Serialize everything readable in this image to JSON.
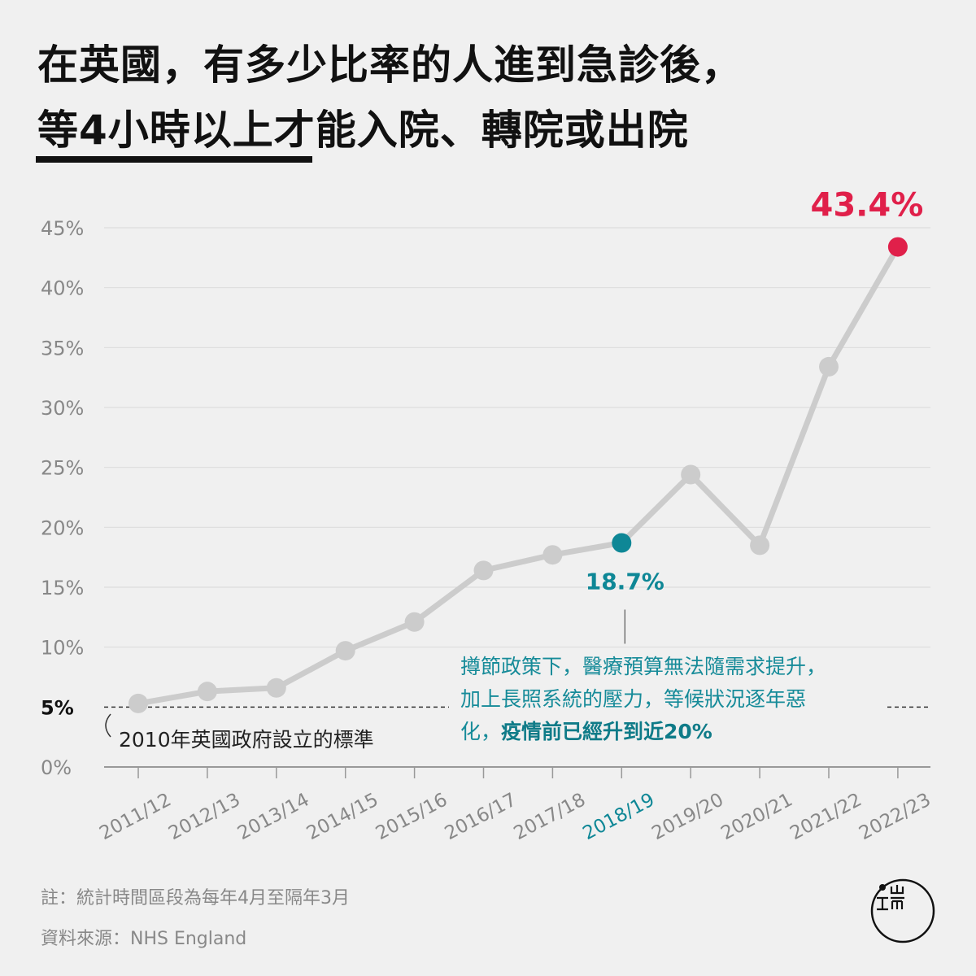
{
  "title": {
    "line1": "在英國，有多少比率的人進到急診後，",
    "line2_underlined": "等4小時以上",
    "line2_rest": "才能入院、轉院或出院"
  },
  "chart_data": {
    "type": "line",
    "title": "在英國，有多少比率的人進到急診後，等4小時以上才能入院、轉院或出院",
    "xlabel": "",
    "ylabel": "",
    "ylim": [
      0,
      45
    ],
    "yticks": [
      0,
      5,
      10,
      15,
      20,
      25,
      30,
      35,
      40,
      45
    ],
    "ytick_labels": [
      "0%",
      "5%",
      "10%",
      "15%",
      "20%",
      "25%",
      "30%",
      "35%",
      "40%",
      "45%"
    ],
    "grid": true,
    "categories": [
      "2011/12",
      "2012/13",
      "2013/14",
      "2014/15",
      "2015/16",
      "2016/17",
      "2017/18",
      "2018/19",
      "2019/20",
      "2020/21",
      "2021/22",
      "2022/23"
    ],
    "series": [
      {
        "name": "等4小時以上比率",
        "values": [
          5.3,
          6.3,
          6.6,
          9.7,
          12.1,
          16.4,
          17.7,
          18.7,
          24.4,
          18.5,
          33.4,
          43.4
        ]
      }
    ],
    "highlights": [
      {
        "category": "2018/19",
        "label": "18.7%",
        "color": "#0e8796"
      },
      {
        "category": "2022/23",
        "label": "43.4%",
        "color": "#e0204a"
      }
    ],
    "reference_line": {
      "value": 5,
      "label": "2010年英國政府設立的標準"
    },
    "annotation": {
      "line1": "撙節政策下，醫療預算無法隨需求提升，",
      "line2": "加上長照系統的壓力，等候狀況逐年惡",
      "line3_plain": "化，",
      "line3_bold": "疫情前已經升到近20%"
    }
  },
  "colors": {
    "line": "#cccccc",
    "teal": "#0e8796",
    "red": "#e0204a",
    "grid": "#dddddd"
  },
  "footer": {
    "note": "註：統計時間區段為每年4月至隔年3月",
    "source": "資料來源：NHS England"
  },
  "logo": {
    "text": "端"
  }
}
